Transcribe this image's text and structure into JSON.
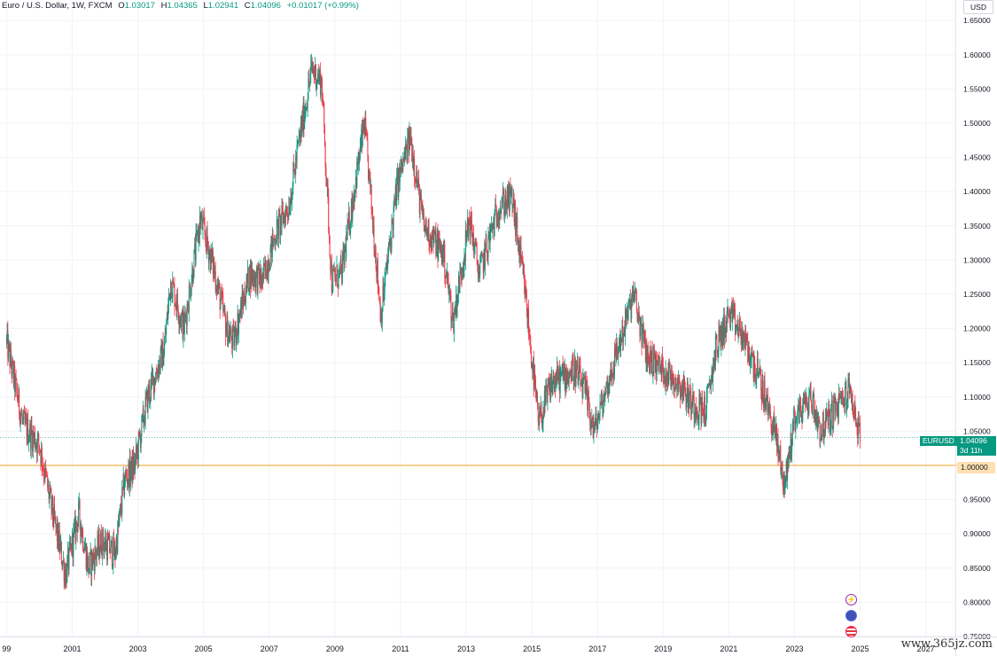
{
  "legend": {
    "symbol": "Euro / U.S. Dollar, 1W, FXCM",
    "open_label": "O",
    "open": "1.03017",
    "high_label": "H",
    "high": "1.04365",
    "low_label": "L",
    "low": "1.02941",
    "close_label": "C",
    "close": "1.04096",
    "change": "+0.01017 (+0.99%)"
  },
  "currency": "USD",
  "ticker_tag": {
    "symbol": "EURUSD",
    "price": "1.04096",
    "countdown": "3d 11h"
  },
  "level_tag": "1.00000",
  "watermark": "www.365jz.com",
  "colors": {
    "up": "#089981",
    "down": "#f23645",
    "grid": "#f0f3fa",
    "level_line": "#f7c26b",
    "level_bg": "#ffe0b2",
    "text": "#131722",
    "price_line": "#089981"
  },
  "event_icons": [
    "lightning-icon",
    "globe-icon",
    "us-flag-icon"
  ],
  "chart_data": {
    "type": "candlestick",
    "title": "Euro / U.S. Dollar, 1W, FXCM",
    "xlabel": "",
    "ylabel": "",
    "ylim": [
      0.75,
      1.68
    ],
    "xlim": [
      1998.8,
      2027.9
    ],
    "x_ticks": [
      "99",
      "2001",
      "2003",
      "2005",
      "2007",
      "2009",
      "2011",
      "2013",
      "2015",
      "2017",
      "2019",
      "2021",
      "2023",
      "2025",
      "2027"
    ],
    "y_ticks": [
      "1.65000",
      "1.60000",
      "1.55000",
      "1.50000",
      "1.45000",
      "1.40000",
      "1.35000",
      "1.30000",
      "1.25000",
      "1.20000",
      "1.15000",
      "1.10000",
      "1.05000",
      "1.00000",
      "0.95000",
      "0.90000",
      "0.85000",
      "0.80000",
      "0.75000"
    ],
    "horizontal_line": 1.0,
    "last_price": 1.04096,
    "grid": true,
    "path": [
      [
        1999.0,
        1.18
      ],
      [
        1999.5,
        1.06
      ],
      [
        2000.0,
        1.03
      ],
      [
        2000.4,
        0.93
      ],
      [
        2000.8,
        0.84
      ],
      [
        2001.2,
        0.93
      ],
      [
        2001.5,
        0.85
      ],
      [
        2001.9,
        0.89
      ],
      [
        2002.3,
        0.87
      ],
      [
        2002.6,
        0.98
      ],
      [
        2002.9,
        1.0
      ],
      [
        2003.3,
        1.1
      ],
      [
        2003.8,
        1.17
      ],
      [
        2004.0,
        1.27
      ],
      [
        2004.4,
        1.2
      ],
      [
        2004.9,
        1.36
      ],
      [
        2005.3,
        1.29
      ],
      [
        2005.7,
        1.2
      ],
      [
        2005.9,
        1.18
      ],
      [
        2006.4,
        1.28
      ],
      [
        2006.8,
        1.27
      ],
      [
        2007.2,
        1.34
      ],
      [
        2007.6,
        1.38
      ],
      [
        2007.9,
        1.47
      ],
      [
        2008.3,
        1.58
      ],
      [
        2008.6,
        1.56
      ],
      [
        2008.9,
        1.27
      ],
      [
        2009.2,
        1.28
      ],
      [
        2009.9,
        1.5
      ],
      [
        2010.4,
        1.22
      ],
      [
        2010.9,
        1.41
      ],
      [
        2011.3,
        1.48
      ],
      [
        2011.7,
        1.35
      ],
      [
        2012.3,
        1.31
      ],
      [
        2012.6,
        1.21
      ],
      [
        2013.1,
        1.36
      ],
      [
        2013.4,
        1.28
      ],
      [
        2014.0,
        1.38
      ],
      [
        2014.4,
        1.39
      ],
      [
        2014.8,
        1.25
      ],
      [
        2015.2,
        1.06
      ],
      [
        2015.6,
        1.12
      ],
      [
        2016.3,
        1.14
      ],
      [
        2016.6,
        1.11
      ],
      [
        2016.9,
        1.05
      ],
      [
        2017.5,
        1.15
      ],
      [
        2018.1,
        1.25
      ],
      [
        2018.5,
        1.16
      ],
      [
        2019.0,
        1.14
      ],
      [
        2019.5,
        1.12
      ],
      [
        2019.9,
        1.09
      ],
      [
        2020.3,
        1.08
      ],
      [
        2020.6,
        1.17
      ],
      [
        2021.0,
        1.22
      ],
      [
        2021.4,
        1.19
      ],
      [
        2021.9,
        1.13
      ],
      [
        2022.4,
        1.05
      ],
      [
        2022.7,
        0.97
      ],
      [
        2023.0,
        1.07
      ],
      [
        2023.5,
        1.1
      ],
      [
        2023.8,
        1.05
      ],
      [
        2024.2,
        1.08
      ],
      [
        2024.7,
        1.11
      ],
      [
        2024.9,
        1.06
      ],
      [
        2025.0,
        1.04
      ]
    ]
  }
}
